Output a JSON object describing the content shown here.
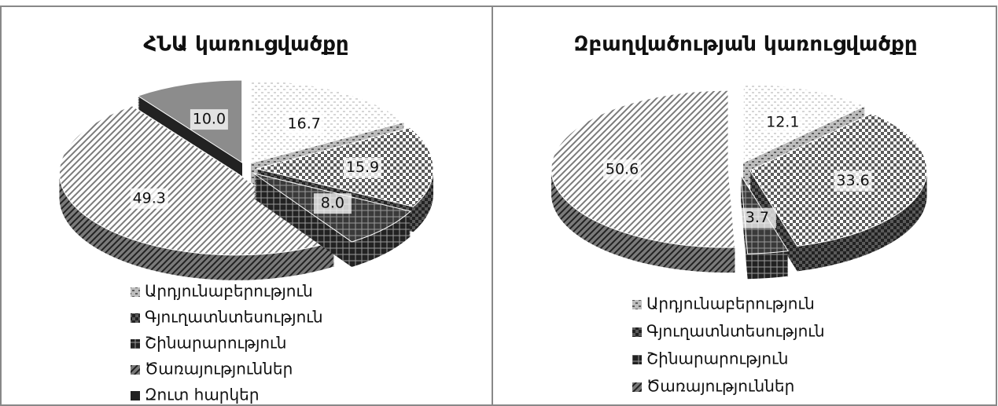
{
  "chart_data": [
    {
      "type": "pie",
      "title": "ՀՆԱ կառուցվածքը",
      "categories": [
        "Արդյունաբերություն",
        "Գյուղատնտեսություն",
        "Շինարարություն",
        "Ծառայություններ",
        "Զուտ հարկեր"
      ],
      "values": [
        16.7,
        15.9,
        8.0,
        49.3,
        10.0
      ],
      "value_labels": [
        "16.7",
        "15.9",
        "8.0",
        "49.3",
        "10.0"
      ],
      "colors": [
        "#bdbdbd",
        "#5a5a5a",
        "#3a3a3a",
        "#7a7a7a",
        "#8c8c8c"
      ]
    },
    {
      "type": "pie",
      "title": "Զբաղվածության կառուցվածքը",
      "categories": [
        "Արդյունաբերություն",
        "Գյուղատնտեսություն",
        "Շինարարություն",
        "Ծառայություններ"
      ],
      "values": [
        12.1,
        33.6,
        3.7,
        50.6
      ],
      "value_labels": [
        "12.1",
        "33.6",
        "3.7",
        "50.6"
      ],
      "colors": [
        "#bdbdbd",
        "#5a5a5a",
        "#3a3a3a",
        "#7a7a7a"
      ]
    }
  ]
}
